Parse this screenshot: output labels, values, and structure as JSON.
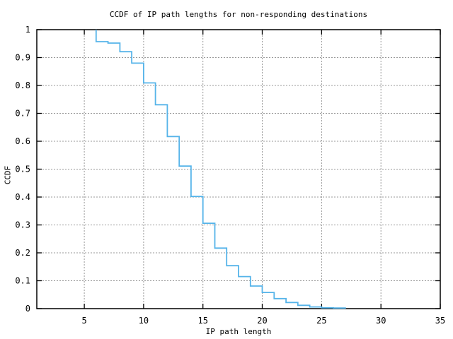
{
  "window": {
    "background_color": "#ffffff"
  },
  "chart_data": {
    "type": "line",
    "subtype": "step-function-ccdf",
    "title": "CCDF of IP path lengths for non-responding destinations",
    "xlabel": "IP path length",
    "ylabel": "CCDF",
    "xlim": [
      1,
      35
    ],
    "ylim": [
      0,
      1
    ],
    "xticks": [
      5,
      10,
      15,
      20,
      25,
      30,
      35
    ],
    "xtick_labels": [
      "5",
      "10",
      "15",
      "20",
      "25",
      "30",
      "35"
    ],
    "yticks": [
      0,
      0.1,
      0.2,
      0.3,
      0.4,
      0.5,
      0.6,
      0.7,
      0.8,
      0.9,
      1
    ],
    "ytick_labels": [
      "0",
      "0.1",
      "0.2",
      "0.3",
      "0.4",
      "0.5",
      "0.6",
      "0.7",
      "0.8",
      "0.9",
      "1"
    ],
    "grid": true,
    "grid_style": "dashed",
    "legend_position": "none",
    "series": [
      {
        "name": "ccdf-of-ip-path-length",
        "color": "#56b4e9",
        "step": true,
        "start_y": 1.0,
        "points": [
          [
            6,
            0.957
          ],
          [
            7,
            0.952
          ],
          [
            8,
            0.921
          ],
          [
            9,
            0.88
          ],
          [
            10,
            0.809
          ],
          [
            11,
            0.731
          ],
          [
            12,
            0.617
          ],
          [
            13,
            0.511
          ],
          [
            14,
            0.402
          ],
          [
            15,
            0.306
          ],
          [
            16,
            0.217
          ],
          [
            17,
            0.154
          ],
          [
            18,
            0.115
          ],
          [
            19,
            0.081
          ],
          [
            20,
            0.058
          ],
          [
            21,
            0.036
          ],
          [
            22,
            0.022
          ],
          [
            23,
            0.012
          ],
          [
            24,
            0.006
          ],
          [
            25,
            0.003
          ],
          [
            26,
            0.002
          ],
          [
            27,
            0
          ]
        ]
      }
    ],
    "colors": {
      "line": "#56b4e9",
      "grid": "#999999",
      "axis": "#000000",
      "text": "#000000"
    }
  }
}
